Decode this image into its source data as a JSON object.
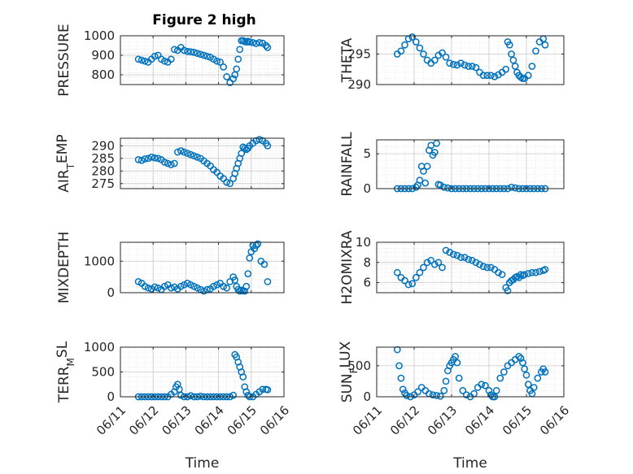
{
  "figure": {
    "title": "Figure 2 high"
  },
  "colors": {
    "marker": "#0072BD",
    "grid": "#d9d9d9",
    "axis": "#262626"
  },
  "chart_data": [
    {
      "type": "scatter",
      "ylabel": "PRESSURE",
      "xlabel": "",
      "xlim": [
        "06/11",
        "06/16"
      ],
      "ylim": [
        750,
        1000
      ],
      "yticks": [
        800,
        900,
        1000
      ],
      "xtick_labels": [],
      "grid": true,
      "marker": "open-circle",
      "x": [
        11.55,
        11.65,
        11.75,
        11.85,
        11.95,
        12.05,
        12.15,
        12.25,
        12.35,
        12.45,
        12.55,
        12.65,
        12.75,
        12.85,
        12.95,
        13.05,
        13.15,
        13.25,
        13.35,
        13.45,
        13.55,
        13.65,
        13.75,
        13.85,
        13.95,
        14.05,
        14.15,
        14.25,
        14.35,
        14.45,
        14.5,
        14.55,
        14.6,
        14.65,
        14.7,
        14.75,
        14.8,
        14.85,
        14.9,
        14.95,
        15.05,
        15.15,
        15.25,
        15.35,
        15.45,
        15.5
      ],
      "y": [
        880,
        875,
        870,
        865,
        880,
        895,
        900,
        880,
        870,
        865,
        880,
        930,
        925,
        940,
        925,
        920,
        918,
        915,
        910,
        905,
        900,
        895,
        890,
        880,
        870,
        865,
        840,
        790,
        760,
        780,
        800,
        830,
        880,
        930,
        975,
        975,
        970,
        968,
        972,
        968,
        965,
        960,
        965,
        962,
        950,
        940
      ]
    },
    {
      "type": "scatter",
      "ylabel": "THETA",
      "xlabel": "",
      "xlim": [
        "06/11",
        "06/16"
      ],
      "ylim": [
        290,
        298
      ],
      "yticks": [
        290,
        295
      ],
      "xtick_labels": [],
      "grid": true,
      "marker": "open-circle",
      "x": [
        11.55,
        11.65,
        11.75,
        11.85,
        11.95,
        12.05,
        12.15,
        12.25,
        12.35,
        12.45,
        12.55,
        12.65,
        12.75,
        12.85,
        12.95,
        13.05,
        13.15,
        13.25,
        13.35,
        13.45,
        13.55,
        13.65,
        13.75,
        13.85,
        13.95,
        14.05,
        14.15,
        14.25,
        14.35,
        14.45,
        14.5,
        14.55,
        14.6,
        14.65,
        14.7,
        14.75,
        14.8,
        14.85,
        14.9,
        14.95,
        15.05,
        15.15,
        15.25,
        15.35,
        15.45,
        15.5
      ],
      "y": [
        295,
        295.5,
        296.5,
        297.5,
        297.8,
        297,
        296,
        295,
        294,
        293.5,
        294,
        294.8,
        295.2,
        294.5,
        293.5,
        293.3,
        293.2,
        293.5,
        293.2,
        293,
        293,
        292.8,
        292,
        291.5,
        291.5,
        291.5,
        291.3,
        291.6,
        292,
        292.5,
        297,
        296.5,
        295,
        294,
        293,
        292,
        291.5,
        291.2,
        291,
        291,
        291.5,
        293,
        295.5,
        297,
        297.5,
        296.5
      ]
    },
    {
      "type": "scatter",
      "ylabel": "AIR_TEMP",
      "xlabel": "",
      "xlim": [
        "06/11",
        "06/16"
      ],
      "ylim": [
        273,
        293
      ],
      "yticks": [
        275,
        280,
        285,
        290
      ],
      "xtick_labels": [],
      "grid": true,
      "marker": "open-circle",
      "x": [
        11.55,
        11.65,
        11.75,
        11.85,
        11.95,
        12.05,
        12.15,
        12.25,
        12.35,
        12.45,
        12.55,
        12.65,
        12.75,
        12.85,
        12.95,
        13.05,
        13.15,
        13.25,
        13.35,
        13.45,
        13.55,
        13.65,
        13.75,
        13.85,
        13.95,
        14.05,
        14.15,
        14.25,
        14.35,
        14.45,
        14.5,
        14.55,
        14.6,
        14.65,
        14.7,
        14.75,
        14.8,
        14.85,
        14.9,
        14.95,
        15.05,
        15.15,
        15.25,
        15.35,
        15.45,
        15.5
      ],
      "y": [
        284.5,
        284.2,
        284.8,
        285,
        285.5,
        285.2,
        285,
        284.5,
        283.5,
        283,
        282.5,
        283,
        287.5,
        288,
        287.5,
        287,
        286.5,
        286,
        285.5,
        285,
        284,
        283,
        282,
        280.5,
        279.5,
        278,
        277,
        275.5,
        275,
        277,
        279,
        281,
        283,
        285,
        287,
        289.5,
        289,
        288.5,
        289,
        290,
        291,
        292,
        292.5,
        292,
        291,
        290
      ]
    },
    {
      "type": "scatter",
      "ylabel": "RAINFALL",
      "xlabel": "",
      "xlim": [
        "06/11",
        "06/16"
      ],
      "ylim": [
        0,
        7
      ],
      "yticks": [
        0,
        5
      ],
      "xtick_labels": [],
      "grid": true,
      "marker": "open-circle",
      "x": [
        11.55,
        11.65,
        11.75,
        11.85,
        11.95,
        12.05,
        12.1,
        12.15,
        12.2,
        12.25,
        12.3,
        12.35,
        12.4,
        12.45,
        12.5,
        12.55,
        12.6,
        12.65,
        12.7,
        12.8,
        12.9,
        13.0,
        13.1,
        13.2,
        13.3,
        13.4,
        13.5,
        13.6,
        13.7,
        13.8,
        13.9,
        14.0,
        14.1,
        14.2,
        14.3,
        14.4,
        14.5,
        14.6,
        14.7,
        14.8,
        14.9,
        15.0,
        15.1,
        15.2,
        15.3,
        15.4,
        15.5
      ],
      "y": [
        0,
        0,
        0,
        0,
        0,
        0.2,
        0.5,
        1.2,
        3.2,
        2.5,
        0.8,
        3.2,
        5.5,
        6.2,
        4.8,
        5.2,
        6.5,
        0.6,
        0.5,
        0.2,
        0.1,
        0,
        0,
        0,
        0,
        0,
        0,
        0,
        0,
        0,
        0,
        0,
        0,
        0,
        0,
        0,
        0,
        0.2,
        0.1,
        0,
        0,
        0,
        0,
        0,
        0,
        0,
        0
      ]
    },
    {
      "type": "scatter",
      "ylabel": "MIXDEPTH",
      "xlabel": "",
      "xlim": [
        "06/11",
        "06/16"
      ],
      "ylim": [
        0,
        1600
      ],
      "yticks": [
        0,
        1000
      ],
      "xtick_labels": [],
      "grid": true,
      "marker": "open-circle",
      "x": [
        11.55,
        11.65,
        11.75,
        11.85,
        11.95,
        12.05,
        12.15,
        12.25,
        12.35,
        12.45,
        12.55,
        12.65,
        12.75,
        12.85,
        12.95,
        13.05,
        13.15,
        13.25,
        13.35,
        13.45,
        13.55,
        13.65,
        13.75,
        13.85,
        13.95,
        14.05,
        14.15,
        14.25,
        14.35,
        14.45,
        14.5,
        14.55,
        14.6,
        14.65,
        14.7,
        14.75,
        14.8,
        14.85,
        14.9,
        14.95,
        15.0,
        15.05,
        15.1,
        15.15,
        15.2,
        15.3,
        15.4,
        15.5
      ],
      "y": [
        350,
        300,
        200,
        150,
        120,
        180,
        150,
        100,
        200,
        250,
        150,
        180,
        120,
        200,
        250,
        300,
        250,
        200,
        150,
        100,
        50,
        100,
        120,
        200,
        250,
        300,
        200,
        150,
        350,
        500,
        400,
        200,
        100,
        50,
        80,
        60,
        50,
        200,
        600,
        1100,
        1300,
        1500,
        1400,
        1500,
        1550,
        1000,
        900,
        350
      ]
    },
    {
      "type": "scatter",
      "ylabel": "H2OMIXRA",
      "xlabel": "",
      "xlim": [
        "06/11",
        "06/16"
      ],
      "ylim": [
        5,
        10
      ],
      "yticks": [
        6,
        8,
        10
      ],
      "xtick_labels": [],
      "grid": true,
      "marker": "open-circle",
      "x": [
        11.55,
        11.65,
        11.75,
        11.85,
        11.95,
        12.05,
        12.15,
        12.25,
        12.35,
        12.45,
        12.55,
        12.65,
        12.75,
        12.85,
        12.95,
        13.05,
        13.15,
        13.25,
        13.35,
        13.45,
        13.55,
        13.65,
        13.75,
        13.85,
        13.95,
        14.05,
        14.15,
        14.25,
        14.35,
        14.45,
        14.5,
        14.55,
        14.6,
        14.65,
        14.7,
        14.75,
        14.8,
        14.85,
        14.9,
        14.95,
        15.05,
        15.15,
        15.25,
        15.35,
        15.45,
        15.5
      ],
      "y": [
        7,
        6.5,
        6.2,
        5.8,
        5.9,
        6.5,
        7,
        7.5,
        8,
        8.2,
        7.8,
        8,
        7.5,
        9.2,
        9,
        8.8,
        8.7,
        8.5,
        8.5,
        8.3,
        8.2,
        8,
        7.8,
        7.6,
        7.5,
        7.5,
        7.3,
        7,
        6.8,
        5.5,
        5.2,
        6,
        6.2,
        6.3,
        6.5,
        6.6,
        6.5,
        6.8,
        6.7,
        6.8,
        6.9,
        7,
        7,
        7.1,
        7.2,
        7.3
      ]
    },
    {
      "type": "scatter",
      "ylabel": "TERR_MSL",
      "xlabel": "Time",
      "xlim": [
        "06/11",
        "06/16"
      ],
      "ylim": [
        0,
        1000
      ],
      "yticks": [
        0,
        500,
        1000
      ],
      "xtick_labels": [
        "06/11",
        "06/12",
        "06/13",
        "06/14",
        "06/15",
        "06/16"
      ],
      "grid": true,
      "marker": "open-circle",
      "x": [
        11.55,
        11.65,
        11.75,
        11.85,
        11.95,
        12.05,
        12.15,
        12.25,
        12.35,
        12.45,
        12.55,
        12.65,
        12.7,
        12.75,
        12.8,
        12.85,
        12.95,
        13.05,
        13.15,
        13.25,
        13.35,
        13.45,
        13.55,
        13.65,
        13.75,
        13.85,
        13.95,
        14.05,
        14.15,
        14.25,
        14.35,
        14.45,
        14.5,
        14.55,
        14.6,
        14.65,
        14.7,
        14.75,
        14.8,
        14.85,
        14.9,
        14.95,
        15.05,
        15.15,
        15.25,
        15.35,
        15.45,
        15.5
      ],
      "y": [
        0,
        0,
        0,
        0,
        0,
        0,
        0,
        0,
        0,
        0,
        50,
        100,
        200,
        250,
        150,
        30,
        0,
        0,
        20,
        0,
        0,
        10,
        0,
        0,
        0,
        0,
        0,
        0,
        0,
        0,
        0,
        30,
        850,
        800,
        700,
        600,
        500,
        400,
        200,
        100,
        30,
        0,
        0,
        50,
        100,
        150,
        150,
        140
      ]
    },
    {
      "type": "scatter",
      "ylabel": "SUN_FLUX",
      "xlabel": "Time",
      "xlim": [
        "06/11",
        "06/16"
      ],
      "ylim": [
        0,
        800
      ],
      "yticks": [
        0,
        500
      ],
      "xtick_labels": [
        "06/11",
        "06/12",
        "06/13",
        "06/14",
        "06/15",
        "06/16"
      ],
      "grid": true,
      "marker": "open-circle",
      "x": [
        11.55,
        11.6,
        11.65,
        11.7,
        11.75,
        11.8,
        11.9,
        12.0,
        12.1,
        12.2,
        12.3,
        12.4,
        12.5,
        12.6,
        12.7,
        12.8,
        12.85,
        12.9,
        12.95,
        13.0,
        13.05,
        13.1,
        13.15,
        13.2,
        13.3,
        13.4,
        13.5,
        13.6,
        13.7,
        13.8,
        13.9,
        14.0,
        14.05,
        14.1,
        14.15,
        14.2,
        14.3,
        14.4,
        14.5,
        14.6,
        14.7,
        14.8,
        14.85,
        14.9,
        14.95,
        15.0,
        15.05,
        15.1,
        15.15,
        15.2,
        15.3,
        15.4,
        15.45,
        15.5
      ],
      "y": [
        760,
        500,
        300,
        120,
        60,
        20,
        0,
        30,
        80,
        150,
        100,
        50,
        30,
        20,
        10,
        100,
        250,
        420,
        500,
        550,
        600,
        650,
        550,
        300,
        100,
        30,
        0,
        50,
        150,
        200,
        180,
        100,
        30,
        0,
        0,
        100,
        300,
        400,
        500,
        550,
        600,
        650,
        620,
        550,
        450,
        350,
        200,
        100,
        50,
        150,
        300,
        400,
        450,
        400
      ]
    }
  ]
}
